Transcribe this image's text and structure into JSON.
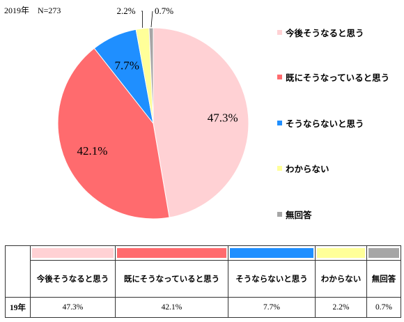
{
  "subtitle": "2019年　N=273",
  "chart_data": {
    "type": "pie",
    "categories": [
      "今後そうなると思う",
      "既にそうなっていると思う",
      "そうならないと思う",
      "わからない",
      "無回答"
    ],
    "values": [
      47.3,
      42.1,
      7.7,
      2.2,
      0.7
    ],
    "value_labels": [
      "47.3%",
      "42.1%",
      "7.7%",
      "2.2%",
      "0.7%"
    ],
    "colors": [
      "#FFD1D4",
      "#FF6B6E",
      "#1F8FFF",
      "#FFFF99",
      "#A6A6A6"
    ],
    "start": "12 o'clock",
    "direction": "clockwise",
    "legend_position": "right"
  },
  "table": {
    "row_label": "19年",
    "headers": [
      "今後そうなると思う",
      "既にそうなっていると思う",
      "そうならないと思う",
      "わからない",
      "無回答"
    ],
    "values": [
      "47.3%",
      "42.1%",
      "7.7%",
      "2.2%",
      "0.7%"
    ]
  }
}
